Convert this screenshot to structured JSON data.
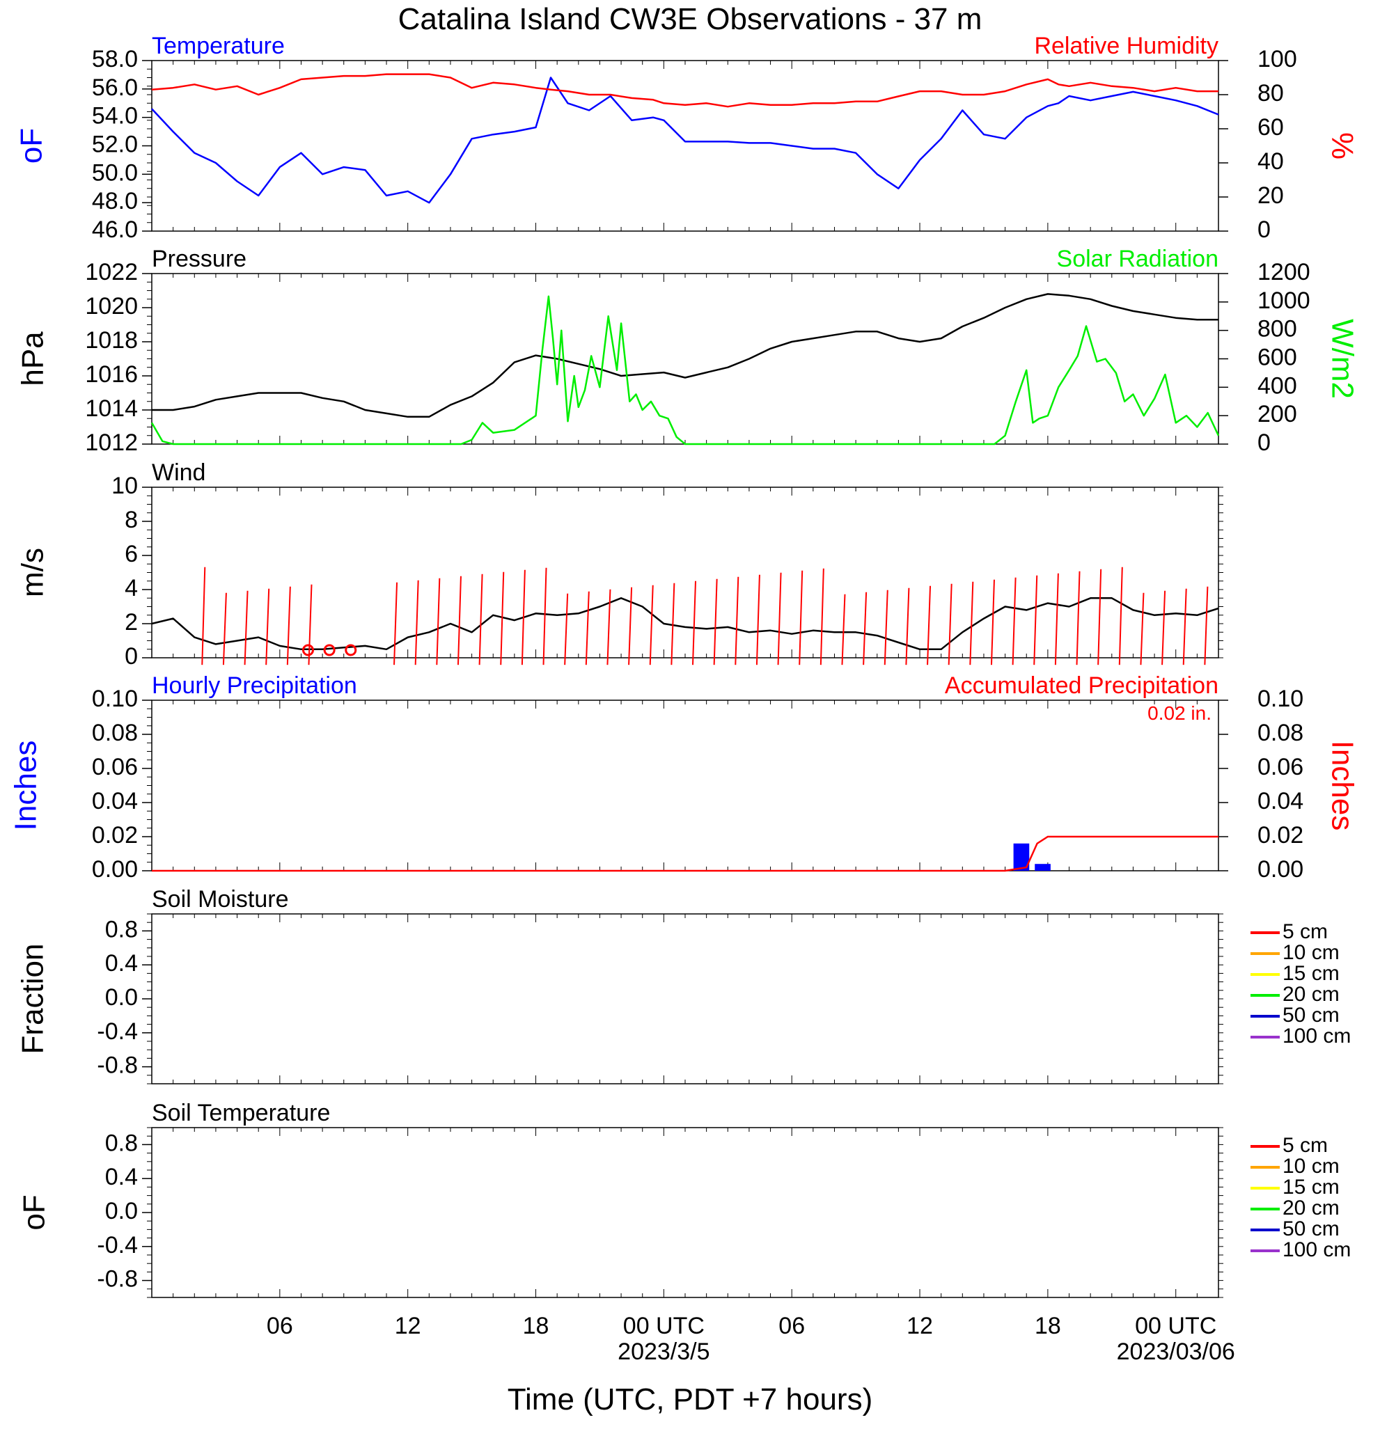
{
  "title": "Catalina Island CW3E Observations - 37 m",
  "xlabel": "Time (UTC, PDT +7 hours)",
  "x_ticks": [
    "06",
    "12",
    "18",
    "00 UTC",
    "06",
    "12",
    "18",
    "00 UTC"
  ],
  "x_dates": [
    "2023/3/5",
    "2023/03/06"
  ],
  "colors": {
    "blue": "#0000ff",
    "red": "#ff0000",
    "green": "#00ee00",
    "black": "#000000"
  },
  "chart_data": [
    {
      "type": "line",
      "title_left": "Temperature",
      "title_right": "Relative Humidity",
      "ylabel_left": "oF",
      "ylabel_right": "%",
      "ylim_left": [
        46,
        58
      ],
      "ylim_right": [
        0,
        100
      ],
      "yticks_left": [
        "58.0",
        "56.0",
        "54.0",
        "52.0",
        "50.0",
        "48.0",
        "46.0"
      ],
      "yticks_right": [
        "100",
        "80",
        "60",
        "40",
        "20",
        "0"
      ],
      "x_hours": [
        0,
        1,
        2,
        3,
        4,
        5,
        6,
        7,
        8,
        9,
        10,
        11,
        12,
        13,
        14,
        15,
        16,
        17,
        18,
        18.7,
        19.5,
        20.5,
        21.5,
        22.5,
        23.5,
        24,
        25,
        26,
        27,
        28,
        29,
        30,
        31,
        32,
        33,
        34,
        35,
        36,
        37,
        38,
        39,
        40,
        41,
        42,
        42.5,
        43,
        44,
        45,
        46,
        47,
        48,
        49,
        50
      ],
      "series": [
        {
          "name": "Temperature",
          "axis": "left",
          "color": "#0000ff",
          "values": [
            54.6,
            53.0,
            51.5,
            50.8,
            49.5,
            48.5,
            50.5,
            51.5,
            50.0,
            50.5,
            50.3,
            48.5,
            48.8,
            48.0,
            50.0,
            52.5,
            52.8,
            53.0,
            53.3,
            56.8,
            55.0,
            54.5,
            55.5,
            53.8,
            54.0,
            53.8,
            52.3,
            52.3,
            52.3,
            52.2,
            52.2,
            52.0,
            51.8,
            51.8,
            51.5,
            50.0,
            49.0,
            51.0,
            52.5,
            54.5,
            52.8,
            52.5,
            54.0,
            54.8,
            55.0,
            55.5,
            55.2,
            55.5,
            55.8,
            55.5,
            55.2,
            54.8,
            54.2
          ]
        },
        {
          "name": "Relative Humidity",
          "axis": "right",
          "color": "#ff0000",
          "values": [
            83,
            84,
            86,
            83,
            85,
            80,
            84,
            89,
            90,
            91,
            91,
            92,
            92,
            92,
            90,
            84,
            87,
            86,
            84,
            83,
            82,
            80,
            80,
            78,
            77,
            75,
            74,
            75,
            73,
            75,
            74,
            74,
            75,
            75,
            76,
            76,
            79,
            82,
            82,
            80,
            80,
            82,
            86,
            89,
            86,
            85,
            87,
            85,
            84,
            82,
            84,
            82,
            82
          ]
        }
      ]
    },
    {
      "type": "line",
      "title_left": "Pressure",
      "title_right": "Solar Radiation",
      "ylabel_left": "hPa",
      "ylabel_right": "W/m2",
      "ylim_left": [
        1012,
        1022
      ],
      "ylim_right": [
        0,
        1200
      ],
      "yticks_left": [
        "1022",
        "1020",
        "1018",
        "1016",
        "1014",
        "1012"
      ],
      "yticks_right": [
        "1200",
        "1000",
        "800",
        "600",
        "400",
        "200",
        "0"
      ],
      "series": [
        {
          "name": "Pressure",
          "axis": "left",
          "color": "#000000",
          "x_hours": [
            0,
            1,
            2,
            3,
            4,
            5,
            6,
            7,
            8,
            9,
            10,
            11,
            12,
            13,
            14,
            15,
            16,
            17,
            18,
            19,
            20,
            21,
            22,
            23,
            24,
            25,
            26,
            27,
            28,
            29,
            30,
            31,
            32,
            33,
            34,
            35,
            36,
            37,
            38,
            39,
            40,
            41,
            42,
            43,
            44,
            45,
            46,
            47,
            48,
            49,
            50
          ],
          "values": [
            1014.0,
            1014.0,
            1014.2,
            1014.6,
            1014.8,
            1015.0,
            1015.0,
            1015.0,
            1014.7,
            1014.5,
            1014.0,
            1013.8,
            1013.6,
            1013.6,
            1014.3,
            1014.8,
            1015.6,
            1016.8,
            1017.2,
            1017.0,
            1016.7,
            1016.4,
            1016.0,
            1016.1,
            1016.2,
            1015.9,
            1016.2,
            1016.5,
            1017.0,
            1017.6,
            1018.0,
            1018.2,
            1018.4,
            1018.6,
            1018.6,
            1018.2,
            1018.0,
            1018.2,
            1018.9,
            1019.4,
            1020.0,
            1020.5,
            1020.8,
            1020.7,
            1020.5,
            1020.1,
            1019.8,
            1019.6,
            1019.4,
            1019.3,
            1019.3
          ]
        },
        {
          "name": "Solar Radiation",
          "axis": "right",
          "color": "#00ee00",
          "x_hours": [
            0,
            0.5,
            1,
            14.5,
            15,
            15.5,
            16,
            17,
            18,
            18.3,
            18.6,
            18.8,
            19.0,
            19.2,
            19.5,
            19.8,
            20,
            20.3,
            20.6,
            21,
            21.4,
            21.8,
            22,
            22.4,
            22.7,
            23,
            23.4,
            23.8,
            24.2,
            24.6,
            25,
            26,
            39.5,
            40,
            40.5,
            41,
            41.3,
            41.6,
            42,
            42.5,
            43,
            43.4,
            43.8,
            44.3,
            44.7,
            45.2,
            45.6,
            46,
            46.5,
            47,
            47.5,
            48,
            48.5,
            49,
            49.5,
            50
          ],
          "values": [
            150,
            20,
            0,
            0,
            30,
            150,
            80,
            100,
            200,
            650,
            1040,
            750,
            420,
            800,
            160,
            480,
            260,
            380,
            620,
            400,
            900,
            520,
            850,
            300,
            350,
            240,
            300,
            200,
            180,
            50,
            0,
            0,
            0,
            60,
            300,
            520,
            150,
            180,
            200,
            400,
            520,
            620,
            830,
            580,
            600,
            500,
            300,
            350,
            200,
            320,
            490,
            150,
            200,
            120,
            220,
            60
          ]
        }
      ]
    },
    {
      "type": "line",
      "title_left": "Wind",
      "ylabel_left": "m/s",
      "ylim_left": [
        0,
        10
      ],
      "yticks_left": [
        "10",
        "8",
        "6",
        "4",
        "2",
        "0"
      ],
      "series": [
        {
          "name": "Wind",
          "axis": "left",
          "color": "#000000",
          "x_hours": [
            0,
            1,
            2,
            3,
            4,
            5,
            6,
            7,
            8,
            9,
            10,
            11,
            12,
            13,
            14,
            15,
            16,
            17,
            18,
            19,
            20,
            21,
            22,
            23,
            24,
            25,
            26,
            27,
            28,
            29,
            30,
            31,
            32,
            33,
            34,
            35,
            36,
            37,
            38,
            39,
            40,
            41,
            42,
            43,
            44,
            45,
            46,
            47,
            48,
            49,
            50
          ],
          "values": [
            2.0,
            2.3,
            1.2,
            0.8,
            1.0,
            1.2,
            0.7,
            0.5,
            0.5,
            0.6,
            0.7,
            0.5,
            1.2,
            1.5,
            2.0,
            1.5,
            2.5,
            2.2,
            2.6,
            2.5,
            2.6,
            3.0,
            3.5,
            3.0,
            2.0,
            1.8,
            1.7,
            1.8,
            1.5,
            1.6,
            1.4,
            1.6,
            1.5,
            1.5,
            1.3,
            0.9,
            0.5,
            0.5,
            1.5,
            2.3,
            3.0,
            2.8,
            3.2,
            3.0,
            3.5,
            3.5,
            2.8,
            2.5,
            2.6,
            2.5,
            2.9
          ]
        }
      ],
      "barb_hours": [
        2,
        3,
        4,
        5,
        6,
        7,
        11,
        12,
        13,
        14,
        15,
        16,
        17,
        18,
        19,
        20,
        21,
        22,
        23,
        24,
        25,
        26,
        27,
        28,
        29,
        30,
        31,
        32,
        33,
        34,
        35,
        36,
        37,
        38,
        39,
        40,
        41,
        42,
        43,
        44,
        45,
        46,
        47,
        48,
        49
      ],
      "calm_hours": [
        7,
        8,
        9
      ]
    },
    {
      "type": "bar",
      "title_left": "Hourly Precipitation",
      "title_right": "Accumulated Precipitation",
      "annotation": "0.02 in.",
      "ylabel_left": "Inches",
      "ylabel_right": "Inches",
      "ylim_left": [
        0,
        0.1
      ],
      "ylim_right": [
        0,
        0.1
      ],
      "yticks_left": [
        "0.10",
        "0.08",
        "0.06",
        "0.04",
        "0.02",
        "0.00"
      ],
      "yticks_right": [
        "0.10",
        "0.08",
        "0.06",
        "0.04",
        "0.02",
        "0.00"
      ],
      "hourly_bars": [
        {
          "x_hours": 41,
          "value": 0.016
        },
        {
          "x_hours": 42,
          "value": 0.004
        }
      ],
      "accumulated": {
        "name": "Accumulated Precipitation",
        "x_hours": [
          0,
          40,
          41,
          41.5,
          42,
          50
        ],
        "values": [
          0,
          0,
          0.002,
          0.016,
          0.02,
          0.02
        ]
      }
    },
    {
      "type": "line",
      "title_left": "Soil Moisture",
      "ylabel_left": "Fraction",
      "ylim_left": [
        -1,
        1
      ],
      "yticks_left": [
        "0.8",
        "0.4",
        "0.0",
        "-0.4",
        "-0.8"
      ],
      "legend": [
        {
          "label": "5 cm",
          "color": "#ff0000"
        },
        {
          "label": "10 cm",
          "color": "#ffa500"
        },
        {
          "label": "15 cm",
          "color": "#ffff00"
        },
        {
          "label": "20 cm",
          "color": "#00ee00"
        },
        {
          "label": "50 cm",
          "color": "#0000cc"
        },
        {
          "label": "100 cm",
          "color": "#9932cc"
        }
      ],
      "series": []
    },
    {
      "type": "line",
      "title_left": "Soil Temperature",
      "ylabel_left": "oF",
      "ylim_left": [
        -1,
        1
      ],
      "yticks_left": [
        "0.8",
        "0.4",
        "0.0",
        "-0.4",
        "-0.8"
      ],
      "legend": [
        {
          "label": "5 cm",
          "color": "#ff0000"
        },
        {
          "label": "10 cm",
          "color": "#ffa500"
        },
        {
          "label": "15 cm",
          "color": "#ffff00"
        },
        {
          "label": "20 cm",
          "color": "#00ee00"
        },
        {
          "label": "50 cm",
          "color": "#0000cc"
        },
        {
          "label": "100 cm",
          "color": "#9932cc"
        }
      ],
      "series": []
    }
  ]
}
